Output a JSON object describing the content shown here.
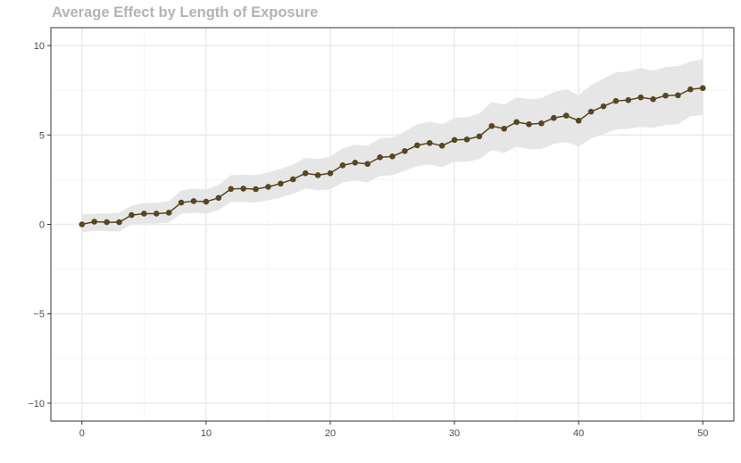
{
  "chart_data": {
    "type": "line",
    "title": "Average Effect by Length of Exposure",
    "xlabel": "",
    "ylabel": "",
    "xlim": [
      -2.5,
      52.5
    ],
    "ylim": [
      -11,
      11
    ],
    "x_ticks": [
      0,
      10,
      20,
      30,
      40,
      50
    ],
    "y_ticks": [
      -10,
      -5,
      0,
      5,
      10
    ],
    "x_tick_labels": [
      "0",
      "10",
      "20",
      "30",
      "40",
      "50"
    ],
    "y_tick_labels": [
      "−10",
      "−5",
      "0",
      "5",
      "10"
    ],
    "grid": true,
    "legend": "none",
    "colors": {
      "line": "#5a4520",
      "point": "#5a4520",
      "ribbon": "#e6e6e6",
      "grid_major": "#ebebeb",
      "grid_minor": "#f5f5f5",
      "axis": "#333333",
      "title": "#b3b3b3"
    },
    "series": [
      {
        "x": [
          0,
          1,
          2,
          3,
          4,
          5,
          6,
          7,
          8,
          9,
          10,
          11,
          12,
          13,
          14,
          15,
          16,
          17,
          18,
          19,
          20,
          21,
          22,
          23,
          24,
          25,
          26,
          27,
          28,
          29,
          30,
          31,
          32,
          33,
          34,
          35,
          36,
          37,
          38,
          39,
          40,
          41,
          42,
          43,
          44,
          45,
          46,
          47,
          48,
          49,
          50
        ],
        "y": [
          0.0,
          0.15,
          0.12,
          0.12,
          0.52,
          0.6,
          0.6,
          0.65,
          1.22,
          1.3,
          1.27,
          1.48,
          1.98,
          2.0,
          1.97,
          2.1,
          2.28,
          2.52,
          2.86,
          2.75,
          2.86,
          3.3,
          3.45,
          3.38,
          3.75,
          3.8,
          4.1,
          4.42,
          4.55,
          4.4,
          4.72,
          4.75,
          4.92,
          5.5,
          5.35,
          5.72,
          5.6,
          5.65,
          5.95,
          6.08,
          5.8,
          6.3,
          6.6,
          6.9,
          6.95,
          7.1,
          7.0,
          7.2,
          7.22,
          7.55,
          7.62
        ],
        "lower": [
          -0.45,
          -0.35,
          -0.38,
          -0.4,
          0.0,
          0.05,
          0.05,
          0.1,
          0.6,
          0.65,
          0.6,
          0.8,
          1.25,
          1.25,
          1.22,
          1.35,
          1.5,
          1.7,
          2.0,
          1.9,
          1.95,
          2.35,
          2.45,
          2.35,
          2.7,
          2.75,
          3.0,
          3.25,
          3.35,
          3.2,
          3.5,
          3.5,
          3.65,
          4.15,
          4.0,
          4.35,
          4.2,
          4.2,
          4.5,
          4.6,
          4.35,
          4.8,
          5.05,
          5.3,
          5.35,
          5.45,
          5.4,
          5.55,
          5.6,
          6.05,
          6.1
        ],
        "upper": [
          0.55,
          0.6,
          0.62,
          0.65,
          1.05,
          1.2,
          1.2,
          1.3,
          1.9,
          2.0,
          1.95,
          2.2,
          2.75,
          2.78,
          2.75,
          2.9,
          3.1,
          3.35,
          3.72,
          3.65,
          3.8,
          4.25,
          4.45,
          4.4,
          4.8,
          4.85,
          5.2,
          5.6,
          5.75,
          5.6,
          5.95,
          6.0,
          6.2,
          6.85,
          6.7,
          7.1,
          7.0,
          7.05,
          7.4,
          7.55,
          7.2,
          7.8,
          8.15,
          8.5,
          8.55,
          8.75,
          8.6,
          8.8,
          8.85,
          9.1,
          9.25
        ]
      }
    ]
  }
}
